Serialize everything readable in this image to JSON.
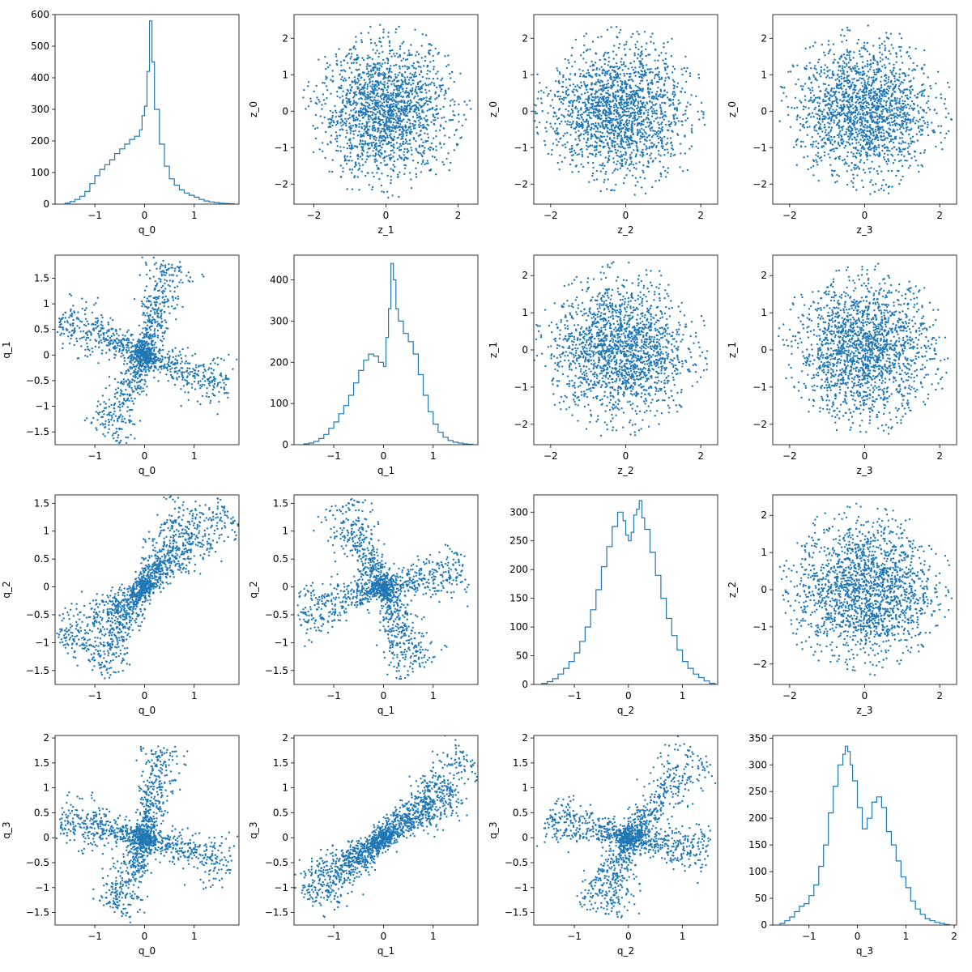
{
  "colors": {
    "accent": "#1f77b4",
    "axes": "#000000",
    "background": "#ffffff"
  },
  "chart_data": [
    {
      "id": "r0c0",
      "type": "histogram",
      "xlabel": "q_0",
      "ylabel": "",
      "xlim": [
        -1.8,
        1.9
      ],
      "ylim": [
        0,
        600
      ],
      "xticks": [
        -1,
        0,
        1
      ],
      "yticks": [
        0,
        100,
        200,
        300,
        400,
        500,
        600
      ],
      "grid": false,
      "x": [
        -1.6,
        -1.5,
        -1.4,
        -1.3,
        -1.2,
        -1.1,
        -1.0,
        -0.9,
        -0.8,
        -0.7,
        -0.6,
        -0.5,
        -0.4,
        -0.3,
        -0.2,
        -0.1,
        -0.05,
        0.0,
        0.05,
        0.1,
        0.15,
        0.2,
        0.3,
        0.4,
        0.5,
        0.6,
        0.7,
        0.8,
        0.9,
        1.0,
        1.1,
        1.2,
        1.3,
        1.4,
        1.5,
        1.6,
        1.7
      ],
      "values": [
        3,
        8,
        15,
        25,
        40,
        65,
        90,
        110,
        125,
        140,
        160,
        175,
        190,
        205,
        215,
        235,
        280,
        310,
        420,
        580,
        450,
        300,
        190,
        120,
        80,
        60,
        45,
        35,
        28,
        22,
        15,
        10,
        7,
        5,
        3,
        2,
        1
      ]
    },
    {
      "id": "r0c1",
      "type": "scatter",
      "xlabel": "z_1",
      "ylabel": "z_0",
      "xlim": [
        -2.55,
        2.55
      ],
      "ylim": [
        -2.55,
        2.65
      ],
      "xticks": [
        -2,
        0,
        2
      ],
      "yticks": [
        -2,
        -1,
        0,
        1,
        2
      ],
      "shape": "disc",
      "radius": 2.4,
      "center": [
        0,
        0
      ]
    },
    {
      "id": "r0c2",
      "type": "scatter",
      "xlabel": "z_2",
      "ylabel": "z_0",
      "xlim": [
        -2.45,
        2.45
      ],
      "ylim": [
        -2.55,
        2.65
      ],
      "xticks": [
        -2,
        0,
        2
      ],
      "yticks": [
        -2,
        -1,
        0,
        1,
        2
      ],
      "shape": "disc",
      "radius": 2.4,
      "center": [
        -0.3,
        0
      ]
    },
    {
      "id": "r0c3",
      "type": "scatter",
      "xlabel": "z_3",
      "ylabel": "z_0",
      "xlim": [
        -2.45,
        2.45
      ],
      "ylim": [
        -2.55,
        2.65
      ],
      "xticks": [
        -2,
        0,
        2
      ],
      "yticks": [
        -2,
        -1,
        0,
        1,
        2
      ],
      "shape": "disc",
      "radius": 2.35,
      "center": [
        0,
        0
      ]
    },
    {
      "id": "r1c0",
      "type": "scatter",
      "xlabel": "q_0",
      "ylabel": "q_1",
      "xlim": [
        -1.8,
        1.9
      ],
      "ylim": [
        -1.75,
        1.95
      ],
      "xticks": [
        -1,
        0,
        1
      ],
      "yticks": [
        -1.5,
        -1.0,
        -0.5,
        0.0,
        0.5,
        1.0,
        1.5
      ],
      "shape": "arms",
      "arms": [
        [
          -1.7,
          0.75
        ],
        [
          0.5,
          1.8
        ],
        [
          1.7,
          -0.7
        ],
        [
          -0.8,
          -1.6
        ]
      ]
    },
    {
      "id": "r1c1",
      "type": "histogram",
      "xlabel": "q_1",
      "ylabel": "",
      "xlim": [
        -1.8,
        1.9
      ],
      "ylim": [
        0,
        460
      ],
      "xticks": [
        -1,
        0,
        1
      ],
      "yticks": [
        0,
        100,
        200,
        300,
        400
      ],
      "grid": false,
      "x": [
        -1.6,
        -1.5,
        -1.4,
        -1.3,
        -1.2,
        -1.1,
        -1.0,
        -0.9,
        -0.8,
        -0.7,
        -0.6,
        -0.5,
        -0.4,
        -0.3,
        -0.2,
        -0.1,
        0.0,
        0.05,
        0.1,
        0.15,
        0.2,
        0.25,
        0.3,
        0.4,
        0.5,
        0.6,
        0.7,
        0.8,
        0.9,
        1.0,
        1.1,
        1.2,
        1.3,
        1.4,
        1.5,
        1.6,
        1.7
      ],
      "values": [
        2,
        4,
        8,
        15,
        25,
        40,
        55,
        75,
        95,
        120,
        150,
        180,
        205,
        220,
        215,
        200,
        190,
        260,
        330,
        440,
        400,
        330,
        300,
        270,
        250,
        220,
        170,
        120,
        80,
        50,
        30,
        18,
        10,
        6,
        4,
        2,
        1
      ]
    },
    {
      "id": "r1c2",
      "type": "scatter",
      "xlabel": "z_2",
      "ylabel": "z_1",
      "xlim": [
        -2.45,
        2.45
      ],
      "ylim": [
        -2.55,
        2.55
      ],
      "xticks": [
        -2,
        0,
        2
      ],
      "yticks": [
        -2,
        -1,
        0,
        1,
        2
      ],
      "shape": "disc",
      "radius": 2.4,
      "center": [
        -0.2,
        0
      ]
    },
    {
      "id": "r1c3",
      "type": "scatter",
      "xlabel": "z_3",
      "ylabel": "z_1",
      "xlim": [
        -2.45,
        2.45
      ],
      "ylim": [
        -2.55,
        2.55
      ],
      "xticks": [
        -2,
        0,
        2
      ],
      "yticks": [
        -2,
        -1,
        0,
        1,
        2
      ],
      "shape": "disc",
      "radius": 2.35,
      "center": [
        0,
        0
      ]
    },
    {
      "id": "r2c0",
      "type": "scatter",
      "xlabel": "q_0",
      "ylabel": "q_2",
      "xlim": [
        -1.8,
        1.9
      ],
      "ylim": [
        -1.75,
        1.65
      ],
      "xticks": [
        -1,
        0,
        1
      ],
      "yticks": [
        -1.5,
        -1.0,
        -0.5,
        0.0,
        0.5,
        1.0,
        1.5
      ],
      "shape": "arms",
      "arms": [
        [
          -1.7,
          -1.0
        ],
        [
          1.7,
          1.4
        ],
        [
          -1.0,
          -1.5
        ],
        [
          0.9,
          1.5
        ]
      ]
    },
    {
      "id": "r2c1",
      "type": "scatter",
      "xlabel": "q_1",
      "ylabel": "q_2",
      "xlim": [
        -1.8,
        1.9
      ],
      "ylim": [
        -1.75,
        1.65
      ],
      "xticks": [
        -1,
        0,
        1
      ],
      "yticks": [
        -1.5,
        -1.0,
        -0.5,
        0.0,
        0.5,
        1.0,
        1.5
      ],
      "shape": "arms",
      "arms": [
        [
          -1.7,
          -0.5
        ],
        [
          -0.9,
          1.5
        ],
        [
          1.7,
          0.3
        ],
        [
          0.7,
          -1.5
        ]
      ]
    },
    {
      "id": "r2c2",
      "type": "histogram",
      "xlabel": "q_2",
      "ylabel": "",
      "xlim": [
        -1.75,
        1.65
      ],
      "ylim": [
        0,
        330
      ],
      "xticks": [
        -1,
        0,
        1
      ],
      "yticks": [
        0,
        50,
        100,
        150,
        200,
        250,
        300
      ],
      "grid": false,
      "x": [
        -1.6,
        -1.5,
        -1.4,
        -1.3,
        -1.2,
        -1.1,
        -1.0,
        -0.9,
        -0.8,
        -0.7,
        -0.6,
        -0.5,
        -0.4,
        -0.3,
        -0.2,
        -0.1,
        -0.05,
        0.0,
        0.05,
        0.1,
        0.15,
        0.2,
        0.25,
        0.3,
        0.4,
        0.5,
        0.6,
        0.7,
        0.8,
        0.9,
        1.0,
        1.1,
        1.2,
        1.3,
        1.4,
        1.5
      ],
      "values": [
        2,
        5,
        10,
        18,
        28,
        40,
        55,
        75,
        100,
        130,
        165,
        205,
        240,
        275,
        300,
        285,
        260,
        250,
        265,
        295,
        305,
        320,
        290,
        270,
        230,
        190,
        150,
        115,
        85,
        60,
        40,
        28,
        18,
        12,
        6,
        2
      ]
    },
    {
      "id": "r2c3",
      "type": "scatter",
      "xlabel": "z_3",
      "ylabel": "z_2",
      "xlim": [
        -2.45,
        2.45
      ],
      "ylim": [
        -2.55,
        2.55
      ],
      "xticks": [
        -2,
        0,
        2
      ],
      "yticks": [
        -2,
        -1,
        0,
        1,
        2
      ],
      "shape": "disc",
      "radius": 2.35,
      "center": [
        0,
        0
      ]
    },
    {
      "id": "r3c0",
      "type": "scatter",
      "xlabel": "q_0",
      "ylabel": "q_3",
      "xlim": [
        -1.8,
        1.9
      ],
      "ylim": [
        -1.75,
        2.05
      ],
      "xticks": [
        -1,
        0,
        1
      ],
      "yticks": [
        -1.5,
        -1.0,
        -0.5,
        0.0,
        0.5,
        1.0,
        1.5,
        2.0
      ],
      "shape": "arms",
      "arms": [
        [
          -1.7,
          0.4
        ],
        [
          0.4,
          1.8
        ],
        [
          1.75,
          -0.6
        ],
        [
          -0.6,
          -1.5
        ]
      ]
    },
    {
      "id": "r3c1",
      "type": "scatter",
      "xlabel": "q_1",
      "ylabel": "q_3",
      "xlim": [
        -1.8,
        1.9
      ],
      "ylim": [
        -1.75,
        2.05
      ],
      "xticks": [
        -1,
        0,
        1
      ],
      "yticks": [
        -1.5,
        -1.0,
        -0.5,
        0.0,
        0.5,
        1.0,
        1.5,
        2.0
      ],
      "shape": "arms",
      "arms": [
        [
          -1.6,
          -1.2
        ],
        [
          1.7,
          1.7
        ],
        [
          1.5,
          0.9
        ],
        [
          -1.3,
          -0.9
        ]
      ]
    },
    {
      "id": "r3c2",
      "type": "scatter",
      "xlabel": "q_2",
      "ylabel": "q_3",
      "xlim": [
        -1.75,
        1.65
      ],
      "ylim": [
        -1.75,
        2.05
      ],
      "xticks": [
        -1,
        0,
        1
      ],
      "yticks": [
        -1.5,
        -1.0,
        -0.5,
        0.0,
        0.5,
        1.0,
        1.5,
        2.0
      ],
      "shape": "arms",
      "arms": [
        [
          -1.5,
          0.4
        ],
        [
          1.3,
          1.7
        ],
        [
          1.5,
          -0.3
        ],
        [
          -0.5,
          -1.5
        ]
      ]
    },
    {
      "id": "r3c3",
      "type": "histogram",
      "xlabel": "q_3",
      "ylabel": "",
      "xlim": [
        -1.75,
        2.05
      ],
      "ylim": [
        0,
        355
      ],
      "xticks": [
        -1,
        0,
        1,
        2
      ],
      "yticks": [
        0,
        50,
        100,
        150,
        200,
        250,
        300,
        350
      ],
      "grid": false,
      "x": [
        -1.6,
        -1.5,
        -1.4,
        -1.3,
        -1.2,
        -1.1,
        -1.0,
        -0.9,
        -0.8,
        -0.7,
        -0.6,
        -0.5,
        -0.4,
        -0.3,
        -0.25,
        -0.2,
        -0.15,
        -0.1,
        0.0,
        0.1,
        0.2,
        0.3,
        0.4,
        0.5,
        0.6,
        0.7,
        0.8,
        0.9,
        1.0,
        1.1,
        1.2,
        1.3,
        1.4,
        1.5,
        1.6,
        1.7,
        1.8
      ],
      "values": [
        3,
        8,
        15,
        25,
        35,
        40,
        55,
        75,
        110,
        150,
        210,
        260,
        300,
        320,
        335,
        325,
        300,
        270,
        220,
        180,
        200,
        230,
        240,
        220,
        175,
        150,
        120,
        90,
        70,
        45,
        30,
        20,
        12,
        8,
        5,
        3,
        1
      ]
    }
  ]
}
